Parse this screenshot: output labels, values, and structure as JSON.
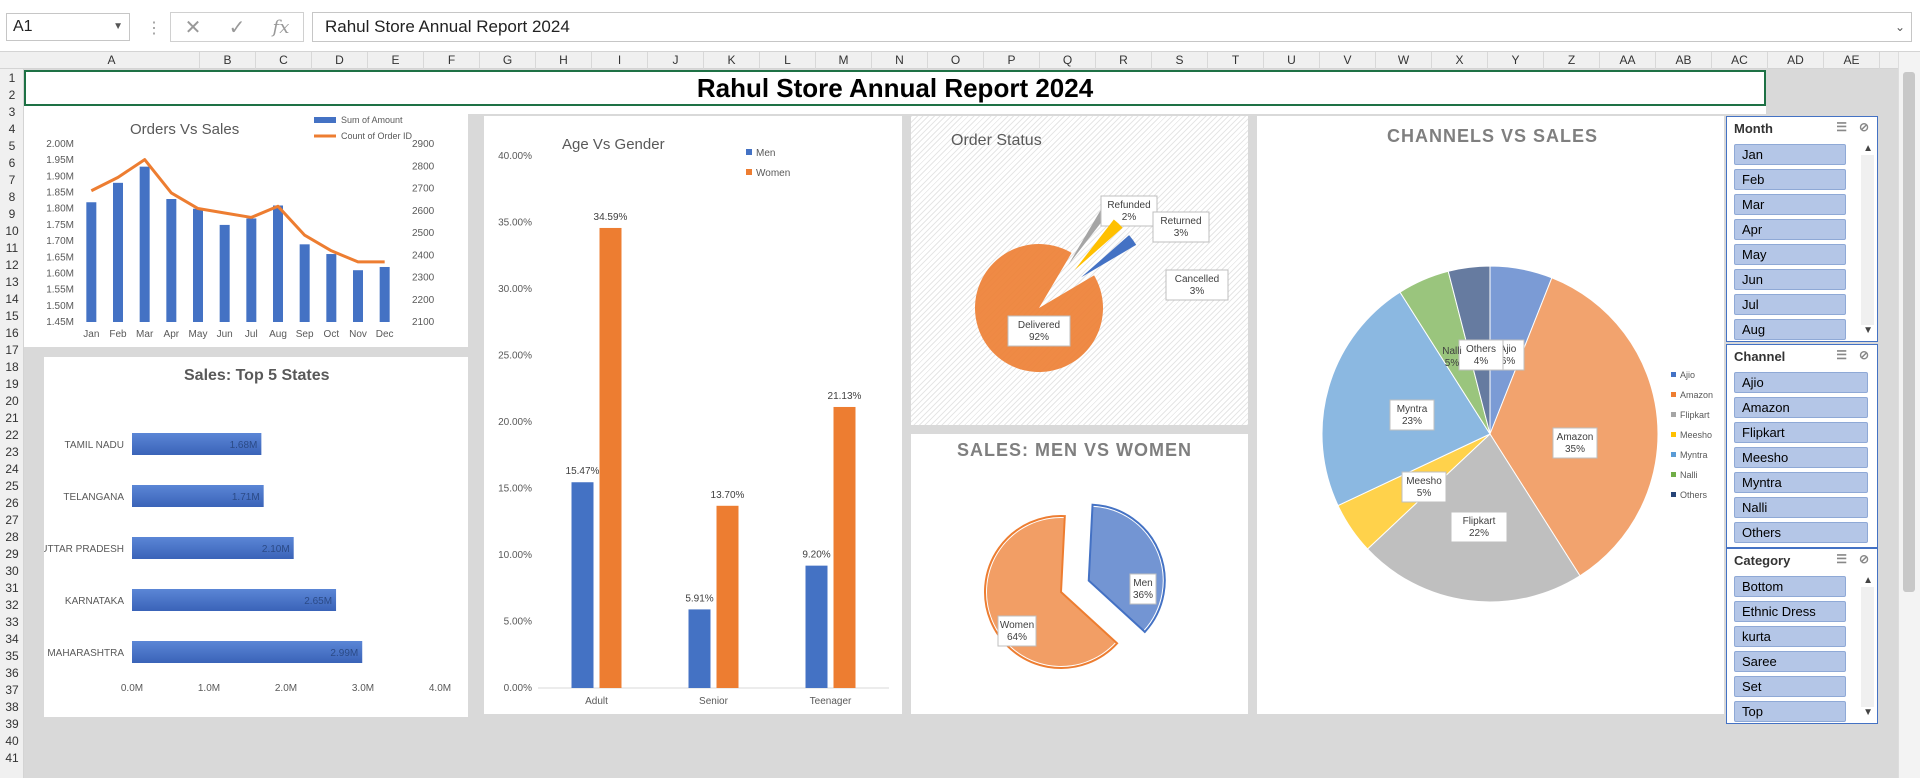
{
  "formula_bar": {
    "name_box": "A1",
    "fx": "fx",
    "content": "Rahul Store Annual Report 2024"
  },
  "columns": [
    "A",
    "B",
    "C",
    "D",
    "E",
    "F",
    "G",
    "H",
    "I",
    "J",
    "K",
    "L",
    "M",
    "N",
    "O",
    "P",
    "Q",
    "R",
    "S",
    "T",
    "U",
    "V",
    "W",
    "X",
    "Y",
    "Z",
    "AA",
    "AB",
    "AC",
    "AD",
    "AE"
  ],
  "rows": [
    "1",
    "2",
    "3",
    "4",
    "5",
    "6",
    "7",
    "8",
    "9",
    "10",
    "11",
    "12",
    "13",
    "14",
    "15",
    "16",
    "17",
    "18",
    "19",
    "20",
    "21",
    "22",
    "23",
    "24",
    "25",
    "26",
    "27",
    "28",
    "29",
    "30",
    "31",
    "32",
    "33",
    "34",
    "35",
    "36",
    "37",
    "38",
    "39",
    "40",
    "41"
  ],
  "report_title": "Rahul Store Annual Report 2024",
  "colors": {
    "blue": "#4472c4",
    "orange": "#ed7d31",
    "gray": "#a5a5a5",
    "yellow": "#ffc000",
    "lightblue": "#5b9bd5",
    "green": "#70ad47",
    "navy": "#264478"
  },
  "chart_data": [
    {
      "id": "orders_vs_sales",
      "type": "bar",
      "title": "Orders Vs Sales",
      "categories": [
        "Jan",
        "Feb",
        "Mar",
        "Apr",
        "May",
        "Jun",
        "Jul",
        "Aug",
        "Sep",
        "Oct",
        "Nov",
        "Dec"
      ],
      "series": [
        {
          "name": "Sum of Amount",
          "type": "bar",
          "axis": "left",
          "values": [
            1.82,
            1.88,
            1.93,
            1.83,
            1.8,
            1.75,
            1.77,
            1.81,
            1.69,
            1.66,
            1.61,
            1.62
          ]
        },
        {
          "name": "Count of Order ID",
          "type": "line",
          "axis": "right",
          "values": [
            2690,
            2750,
            2830,
            2680,
            2610,
            2590,
            2570,
            2620,
            2490,
            2420,
            2370,
            2370
          ]
        }
      ],
      "y_left": {
        "ticks": [
          "1.45M",
          "1.50M",
          "1.55M",
          "1.60M",
          "1.65M",
          "1.70M",
          "1.75M",
          "1.80M",
          "1.85M",
          "1.90M",
          "1.95M",
          "2.00M"
        ],
        "ylim": [
          1.45,
          2.0
        ]
      },
      "y_right": {
        "ticks": [
          "2100",
          "2200",
          "2300",
          "2400",
          "2500",
          "2600",
          "2700",
          "2800",
          "2900"
        ],
        "ylim": [
          2100,
          2900
        ]
      }
    },
    {
      "id": "top5_states",
      "type": "bar",
      "orientation": "horizontal",
      "title": "Sales: Top 5 States",
      "categories": [
        "TAMIL NADU",
        "TELANGANA",
        "UTTAR PRADESH",
        "KARNATAKA",
        "MAHARASHTRA"
      ],
      "values": [
        1.68,
        1.71,
        2.1,
        2.65,
        2.99
      ],
      "labels": [
        "1.68M",
        "1.71M",
        "2.10M",
        "2.65M",
        "2.99M"
      ],
      "x_ticks": [
        "0.0M",
        "1.0M",
        "2.0M",
        "3.0M",
        "4.0M"
      ],
      "xlim": [
        0,
        4
      ]
    },
    {
      "id": "age_vs_gender",
      "type": "bar",
      "title": "Age Vs Gender",
      "categories": [
        "Adult",
        "Senior",
        "Teenager"
      ],
      "series": [
        {
          "name": "Men",
          "values": [
            15.47,
            5.91,
            9.2
          ],
          "labels": [
            "15.47%",
            "5.91%",
            "9.20%"
          ]
        },
        {
          "name": "Women",
          "values": [
            34.59,
            13.7,
            21.13
          ],
          "labels": [
            "34.59%",
            "13.70%",
            "21.13%"
          ]
        }
      ],
      "y_ticks": [
        "0.00%",
        "5.00%",
        "10.00%",
        "15.00%",
        "20.00%",
        "25.00%",
        "30.00%",
        "35.00%",
        "40.00%"
      ],
      "ylim": [
        0,
        40
      ]
    },
    {
      "id": "order_status",
      "type": "pie",
      "title": "Order Status",
      "slices": [
        {
          "name": "Delivered",
          "value": 92,
          "label": "92%"
        },
        {
          "name": "Refunded",
          "value": 2,
          "label": "2%"
        },
        {
          "name": "Returned",
          "value": 3,
          "label": "3%"
        },
        {
          "name": "Cancelled",
          "value": 3,
          "label": "3%"
        }
      ]
    },
    {
      "id": "men_vs_women",
      "type": "pie",
      "title": "SALES: MEN VS WOMEN",
      "slices": [
        {
          "name": "Men",
          "value": 36,
          "label": "36%"
        },
        {
          "name": "Women",
          "value": 64,
          "label": "64%"
        }
      ]
    },
    {
      "id": "channels_vs_sales",
      "type": "pie",
      "title": "CHANNELS VS SALES",
      "legend": [
        "Ajio",
        "Amazon",
        "Flipkart",
        "Meesho",
        "Myntra",
        "Nalli",
        "Others"
      ],
      "slices": [
        {
          "name": "Ajio",
          "value": 6,
          "label": "6%"
        },
        {
          "name": "Amazon",
          "value": 35,
          "label": "35%"
        },
        {
          "name": "Flipkart",
          "value": 22,
          "label": "22%"
        },
        {
          "name": "Meesho",
          "value": 5,
          "label": "5%"
        },
        {
          "name": "Myntra",
          "value": 23,
          "label": "23%"
        },
        {
          "name": "Nalli",
          "value": 5,
          "label": "5%"
        },
        {
          "name": "Others",
          "value": 4,
          "label": "4%"
        }
      ]
    }
  ],
  "slicers": [
    {
      "title": "Month",
      "items": [
        "Jan",
        "Feb",
        "Mar",
        "Apr",
        "May",
        "Jun",
        "Jul",
        "Aug"
      ]
    },
    {
      "title": "Channel",
      "items": [
        "Ajio",
        "Amazon",
        "Flipkart",
        "Meesho",
        "Myntra",
        "Nalli",
        "Others"
      ]
    },
    {
      "title": "Category",
      "items": [
        "Bottom",
        "Ethnic Dress",
        "kurta",
        "Saree",
        "Set",
        "Top"
      ]
    }
  ]
}
